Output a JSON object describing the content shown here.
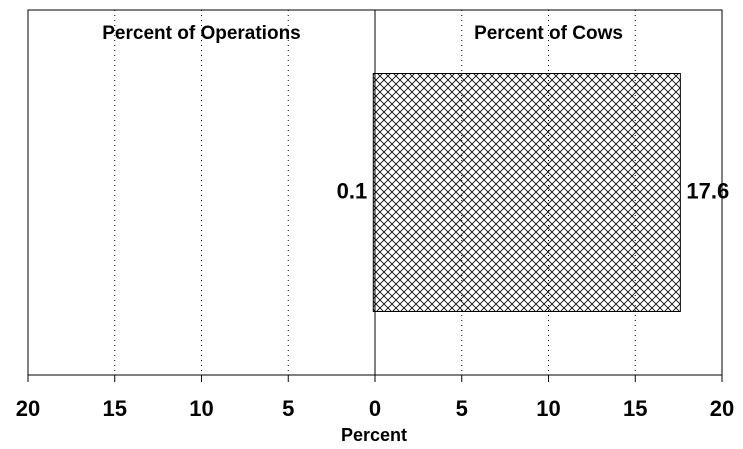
{
  "chart_data": {
    "type": "bar",
    "categories": [
      null
    ],
    "series": [
      {
        "name": "Percent of Operations",
        "color": "#000000",
        "values": [
          0.1
        ]
      },
      {
        "name": "Percent of Cows",
        "color": "#000000",
        "values": [
          17.6
        ]
      }
    ],
    "xlim": [
      -20,
      20
    ],
    "xticks": [
      {
        "value": -20,
        "label": "20"
      },
      {
        "value": -15,
        "label": "15"
      },
      {
        "value": -10,
        "label": "10"
      },
      {
        "value": -5,
        "label": "5"
      },
      0,
      5,
      10,
      15,
      20
    ],
    "x_label": "Percent",
    "grid": true
  }
}
